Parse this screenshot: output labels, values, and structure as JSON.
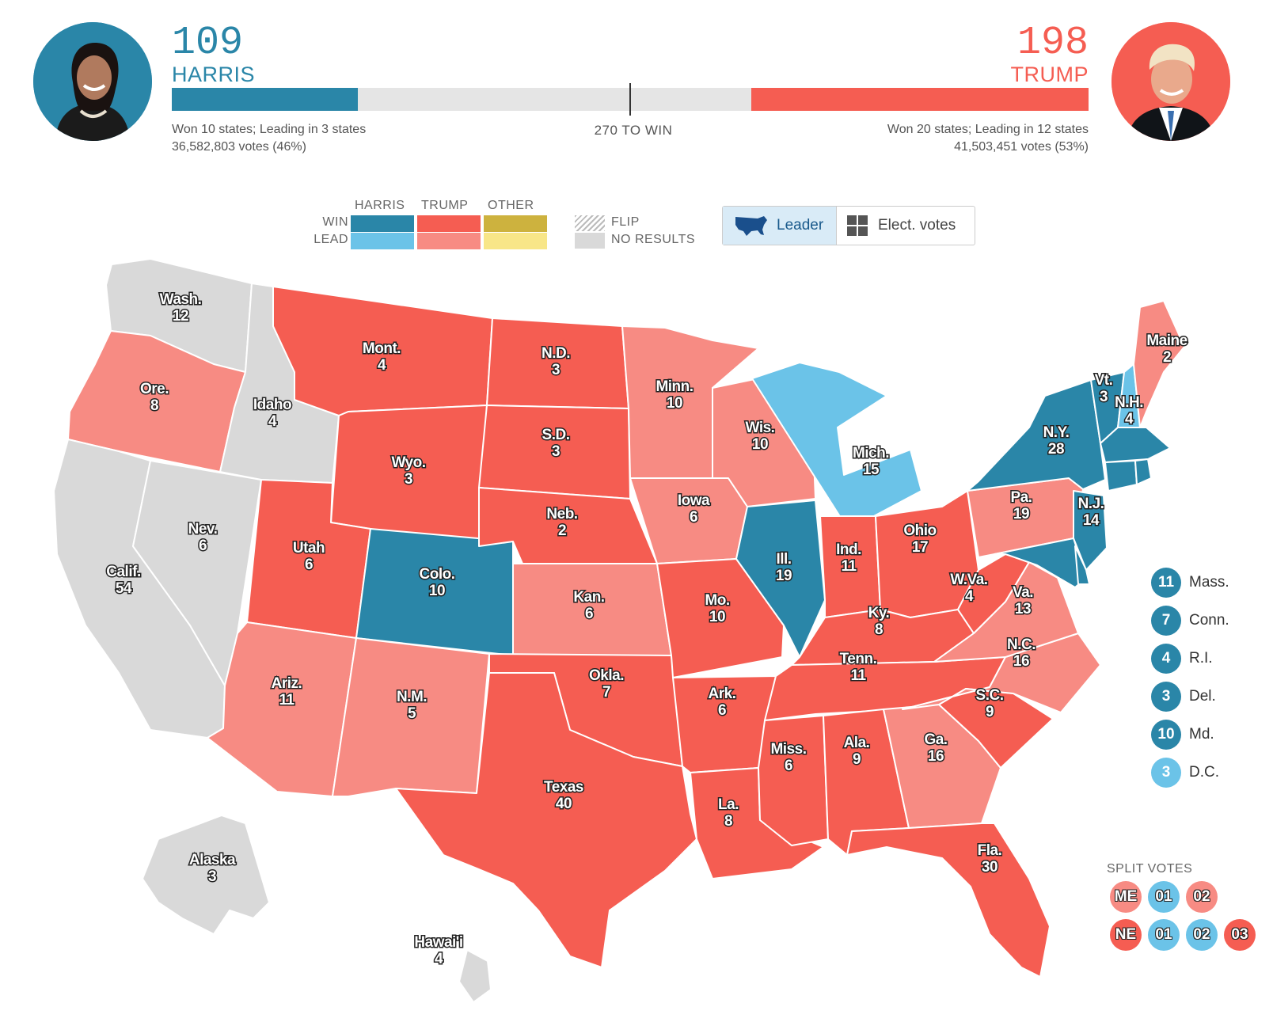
{
  "colors": {
    "harris_win": "#2a86a8",
    "harris_lead": "#6bc3e8",
    "trump_win": "#f55d52",
    "trump_lead": "#f78b83",
    "other_win": "#cdb23e",
    "other_lead": "#f8e688",
    "no_results": "#d9d9d9"
  },
  "header": {
    "harris": {
      "ev": "109",
      "name": "HARRIS",
      "summary": "Won 10 states; Leading in 3 states",
      "votes": "36,582,803 votes (46%)"
    },
    "trump": {
      "ev": "198",
      "name": "TRUMP",
      "summary": "Won 20 states; Leading in 12 states",
      "votes": "41,503,451 votes (53%)"
    },
    "to_win": "270 TO WIN",
    "total_ev": 538,
    "win_threshold": 270
  },
  "legend": {
    "col_harris": "HARRIS",
    "col_trump": "TRUMP",
    "col_other": "OTHER",
    "row_win": "WIN",
    "row_lead": "LEAD",
    "flip": "FLIP",
    "no_results": "NO RESULTS"
  },
  "toggle": {
    "leader": "Leader",
    "elect_votes": "Elect. votes",
    "icon_leader": "us-map-icon",
    "icon_ev": "grid-icon"
  },
  "states": {
    "wa": {
      "label": "Wash.",
      "ev": "12",
      "status": "none"
    },
    "or": {
      "label": "Ore.",
      "ev": "8",
      "status": "trump_lead"
    },
    "ca": {
      "label": "Calif.",
      "ev": "54",
      "status": "none"
    },
    "nv": {
      "label": "Nev.",
      "ev": "6",
      "status": "none"
    },
    "id": {
      "label": "Idaho",
      "ev": "4",
      "status": "none"
    },
    "mt": {
      "label": "Mont.",
      "ev": "4",
      "status": "trump_win"
    },
    "wy": {
      "label": "Wyo.",
      "ev": "3",
      "status": "trump_win"
    },
    "ut": {
      "label": "Utah",
      "ev": "6",
      "status": "trump_win"
    },
    "az": {
      "label": "Ariz.",
      "ev": "11",
      "status": "trump_lead"
    },
    "co": {
      "label": "Colo.",
      "ev": "10",
      "status": "harris_win"
    },
    "nm": {
      "label": "N.M.",
      "ev": "5",
      "status": "trump_lead"
    },
    "nd": {
      "label": "N.D.",
      "ev": "3",
      "status": "trump_win"
    },
    "sd": {
      "label": "S.D.",
      "ev": "3",
      "status": "trump_win"
    },
    "ne": {
      "label": "Neb.",
      "ev": "2",
      "status": "trump_win"
    },
    "ks": {
      "label": "Kan.",
      "ev": "6",
      "status": "trump_lead"
    },
    "ok": {
      "label": "Okla.",
      "ev": "7",
      "status": "trump_win"
    },
    "tx": {
      "label": "Texas",
      "ev": "40",
      "status": "trump_win"
    },
    "mn": {
      "label": "Minn.",
      "ev": "10",
      "status": "trump_lead"
    },
    "ia": {
      "label": "Iowa",
      "ev": "6",
      "status": "trump_lead"
    },
    "mo": {
      "label": "Mo.",
      "ev": "10",
      "status": "trump_win"
    },
    "ar": {
      "label": "Ark.",
      "ev": "6",
      "status": "trump_win"
    },
    "la": {
      "label": "La.",
      "ev": "8",
      "status": "trump_win"
    },
    "wi": {
      "label": "Wis.",
      "ev": "10",
      "status": "trump_lead"
    },
    "il": {
      "label": "Ill.",
      "ev": "19",
      "status": "harris_win"
    },
    "mi": {
      "label": "Mich.",
      "ev": "15",
      "status": "harris_lead"
    },
    "in": {
      "label": "Ind.",
      "ev": "11",
      "status": "trump_win"
    },
    "oh": {
      "label": "Ohio",
      "ev": "17",
      "status": "trump_win"
    },
    "ky": {
      "label": "Ky.",
      "ev": "8",
      "status": "trump_win"
    },
    "tn": {
      "label": "Tenn.",
      "ev": "11",
      "status": "trump_win"
    },
    "ms": {
      "label": "Miss.",
      "ev": "6",
      "status": "trump_win"
    },
    "al": {
      "label": "Ala.",
      "ev": "9",
      "status": "trump_win"
    },
    "ga": {
      "label": "Ga.",
      "ev": "16",
      "status": "trump_lead"
    },
    "fl": {
      "label": "Fla.",
      "ev": "30",
      "status": "trump_win"
    },
    "sc": {
      "label": "S.C.",
      "ev": "9",
      "status": "trump_win"
    },
    "nc": {
      "label": "N.C.",
      "ev": "16",
      "status": "trump_lead"
    },
    "va": {
      "label": "Va.",
      "ev": "13",
      "status": "trump_lead"
    },
    "wv": {
      "label": "W.Va.",
      "ev": "4",
      "status": "trump_win"
    },
    "pa": {
      "label": "Pa.",
      "ev": "19",
      "status": "trump_lead"
    },
    "ny": {
      "label": "N.Y.",
      "ev": "28",
      "status": "harris_win"
    },
    "nj": {
      "label": "N.J.",
      "ev": "14",
      "status": "harris_win"
    },
    "vt": {
      "label": "Vt.",
      "ev": "3",
      "status": "harris_win"
    },
    "nh": {
      "label": "N.H.",
      "ev": "4",
      "status": "harris_lead"
    },
    "me": {
      "label": "Maine",
      "ev": "2",
      "status": "trump_lead"
    },
    "ak": {
      "label": "Alaska",
      "ev": "3",
      "status": "none"
    },
    "hi": {
      "label": "Hawai'i",
      "ev": "4",
      "status": "none"
    }
  },
  "small_states": [
    {
      "ev": "11",
      "name": "Mass.",
      "status": "harris_win"
    },
    {
      "ev": "7",
      "name": "Conn.",
      "status": "harris_win"
    },
    {
      "ev": "4",
      "name": "R.I.",
      "status": "harris_win"
    },
    {
      "ev": "3",
      "name": "Del.",
      "status": "harris_win"
    },
    {
      "ev": "10",
      "name": "Md.",
      "status": "harris_win"
    },
    {
      "ev": "3",
      "name": "D.C.",
      "status": "harris_lead"
    }
  ],
  "split_votes": {
    "title": "SPLIT VOTES",
    "rows": [
      [
        {
          "label": "ME",
          "status": "trump_lead"
        },
        {
          "label": "01",
          "status": "harris_lead"
        },
        {
          "label": "02",
          "status": "trump_lead"
        }
      ],
      [
        {
          "label": "NE",
          "status": "trump_win"
        },
        {
          "label": "01",
          "status": "harris_lead"
        },
        {
          "label": "02",
          "status": "harris_lead"
        },
        {
          "label": "03",
          "status": "trump_win"
        }
      ]
    ]
  }
}
